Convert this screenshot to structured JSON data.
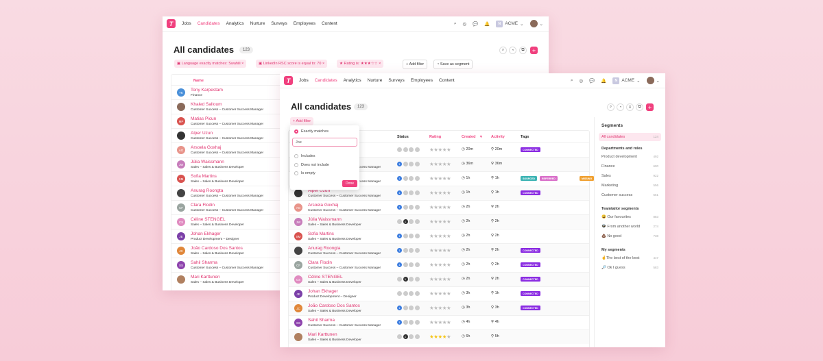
{
  "nav": {
    "logo": "T",
    "items": [
      "Jobs",
      "Candidates",
      "Analytics",
      "Nurture",
      "Surveys",
      "Employees",
      "Content"
    ],
    "active": "Candidates",
    "org": "ACME",
    "org_initial": "N"
  },
  "page": {
    "title": "All candidates",
    "count": "123"
  },
  "filters": [
    {
      "label": "Language exactly matches: Swahili",
      "icon": "language-icon"
    },
    {
      "label": "LinkedIn RSC score is equal to: 70",
      "icon": "linkedin-icon"
    },
    {
      "label": "Rating is:",
      "icon": "star-icon",
      "stars": 3
    }
  ],
  "add_filter": "Add filter",
  "save_segment": "Save as segment",
  "columns": {
    "name": "Name",
    "status": "Status",
    "rating": "Rating",
    "created": "Created",
    "activity": "Activity",
    "tags": "Tags"
  },
  "popup": {
    "selected": "Exactly matches",
    "value": "Joe",
    "options": [
      "Includes",
      "Does not include",
      "Is empty"
    ],
    "done": "Done"
  },
  "candidates": [
    {
      "name": "Tony Karpestam",
      "role": "Finance",
      "initials": "TK",
      "color": "#4a90d9",
      "status": [
        0,
        0,
        0,
        0
      ],
      "rating": 0,
      "created": "20m",
      "activity": "20m",
      "tags": [
        "CONNECTED"
      ]
    },
    {
      "name": "Khaled Salloum",
      "role": "Customer Success – Customer Success Manager",
      "initials": "",
      "color": "#8a6a5a",
      "status": [
        1,
        0,
        0,
        0
      ],
      "rating": 0,
      "created": "36m",
      "activity": "36m",
      "tags": []
    },
    {
      "name": "Matias Picun",
      "role": "Customer Success – Customer Success Manager",
      "initials": "MP",
      "color": "#d9534f",
      "status": [
        1,
        0,
        0,
        0
      ],
      "rating": 0,
      "created": "1h",
      "activity": "1h",
      "tags": [
        "SOURCED",
        "REFERRED",
        "MISSING"
      ]
    },
    {
      "name": "Alper Uzun",
      "role": "Customer Success – Customer Success Manager",
      "initials": "",
      "color": "#333",
      "status": [
        1,
        0,
        0,
        0
      ],
      "rating": 0,
      "created": "1h",
      "activity": "1h",
      "tags": [
        "CONNECTED"
      ]
    },
    {
      "name": "Arsoela Goxhaj",
      "role": "Customer Success – Customer Success Manager",
      "initials": "AG",
      "color": "#e8948a",
      "status": [
        1,
        0,
        0,
        0
      ],
      "rating": 0,
      "created": "2h",
      "activity": "2h",
      "tags": []
    },
    {
      "name": "Júlia Waissmann",
      "role": "Sales – Sales & Business Developer",
      "initials": "JW",
      "color": "#c77dbb",
      "status": [
        0,
        2,
        0,
        0
      ],
      "rating": 0,
      "created": "2h",
      "activity": "2h",
      "tags": []
    },
    {
      "name": "Sofia Martins",
      "role": "Sales – Sales & Business Developer",
      "initials": "SM",
      "color": "#d9534f",
      "status": [
        1,
        0,
        0,
        0
      ],
      "rating": 0,
      "created": "2h",
      "activity": "2h",
      "tags": []
    },
    {
      "name": "Anurag Roongta",
      "role": "Customer Success – Customer Success Manager",
      "initials": "",
      "color": "#444",
      "status": [
        1,
        0,
        0,
        0
      ],
      "rating": 0,
      "created": "2h",
      "activity": "2h",
      "tags": [
        "CONNECTED"
      ]
    },
    {
      "name": "Clara Flodin",
      "role": "Customer Success – Customer Success Manager",
      "initials": "CF",
      "color": "#9aa5a0",
      "status": [
        1,
        0,
        0,
        0
      ],
      "rating": 0,
      "created": "2h",
      "activity": "2h",
      "tags": [
        "CONNECTED"
      ]
    },
    {
      "name": "Céline STENGEL",
      "role": "Sales – Sales & Business Developer",
      "initials": "CS",
      "color": "#e08bc0",
      "status": [
        0,
        2,
        0,
        0
      ],
      "rating": 0,
      "created": "2h",
      "activity": "2h",
      "tags": [
        "CONNECTED"
      ]
    },
    {
      "name": "Johan Ekhager",
      "role": "Product Development – Designer",
      "initials": "JE",
      "color": "#7b3fa8",
      "status": [
        0,
        0,
        0,
        0
      ],
      "rating": 0,
      "created": "3h",
      "activity": "1h",
      "tags": [
        "CONNECTED"
      ]
    },
    {
      "name": "João Cardoso Dos Santos",
      "role": "Sales – Sales & Business Developer",
      "initials": "JC",
      "color": "#e0873a",
      "status": [
        1,
        0,
        0,
        0
      ],
      "rating": 0,
      "created": "3h",
      "activity": "3h",
      "tags": [
        "CONNECTED"
      ]
    },
    {
      "name": "Sahil Sharma",
      "role": "Customer Success – Customer Success Manager",
      "initials": "SS",
      "color": "#8e44ad",
      "status": [
        1,
        0,
        0,
        0
      ],
      "rating": 0,
      "created": "4h",
      "activity": "4h",
      "tags": []
    },
    {
      "name": "Mari Karttunen",
      "role": "Sales – Sales & Business Developer",
      "initials": "",
      "color": "#b08060",
      "status": [
        0,
        2,
        0,
        0
      ],
      "rating": 4,
      "created": "6h",
      "activity": "5h",
      "tags": []
    }
  ],
  "tag_colors": {
    "CONNECTED": "#8a2be2",
    "SOURCED": "#3bb3b3",
    "REFERRED": "#d96fc9",
    "MISSING": "#f0a030"
  },
  "segments": {
    "title": "Segments",
    "all": {
      "label": "All candidates",
      "count": "124"
    },
    "groups": [
      {
        "title": "Departments and roles",
        "items": [
          {
            "label": "Product development",
            "count": "492"
          },
          {
            "label": "Finance",
            "count": "600"
          },
          {
            "label": "Sales",
            "count": "922"
          },
          {
            "label": "Marketing",
            "count": "556"
          },
          {
            "label": "Customer success",
            "count": "561"
          }
        ]
      },
      {
        "title": "Teamtailor segments",
        "items": [
          {
            "label": "😃 Our favourites",
            "count": "883"
          },
          {
            "label": "👽 From another world",
            "count": "274"
          },
          {
            "label": "💩 No good",
            "count": "738"
          }
        ]
      },
      {
        "title": "My segments",
        "items": [
          {
            "label": "🤞The best of the best",
            "count": "447"
          },
          {
            "label": "🔎 Ok I guess",
            "count": "583"
          }
        ]
      }
    ]
  }
}
